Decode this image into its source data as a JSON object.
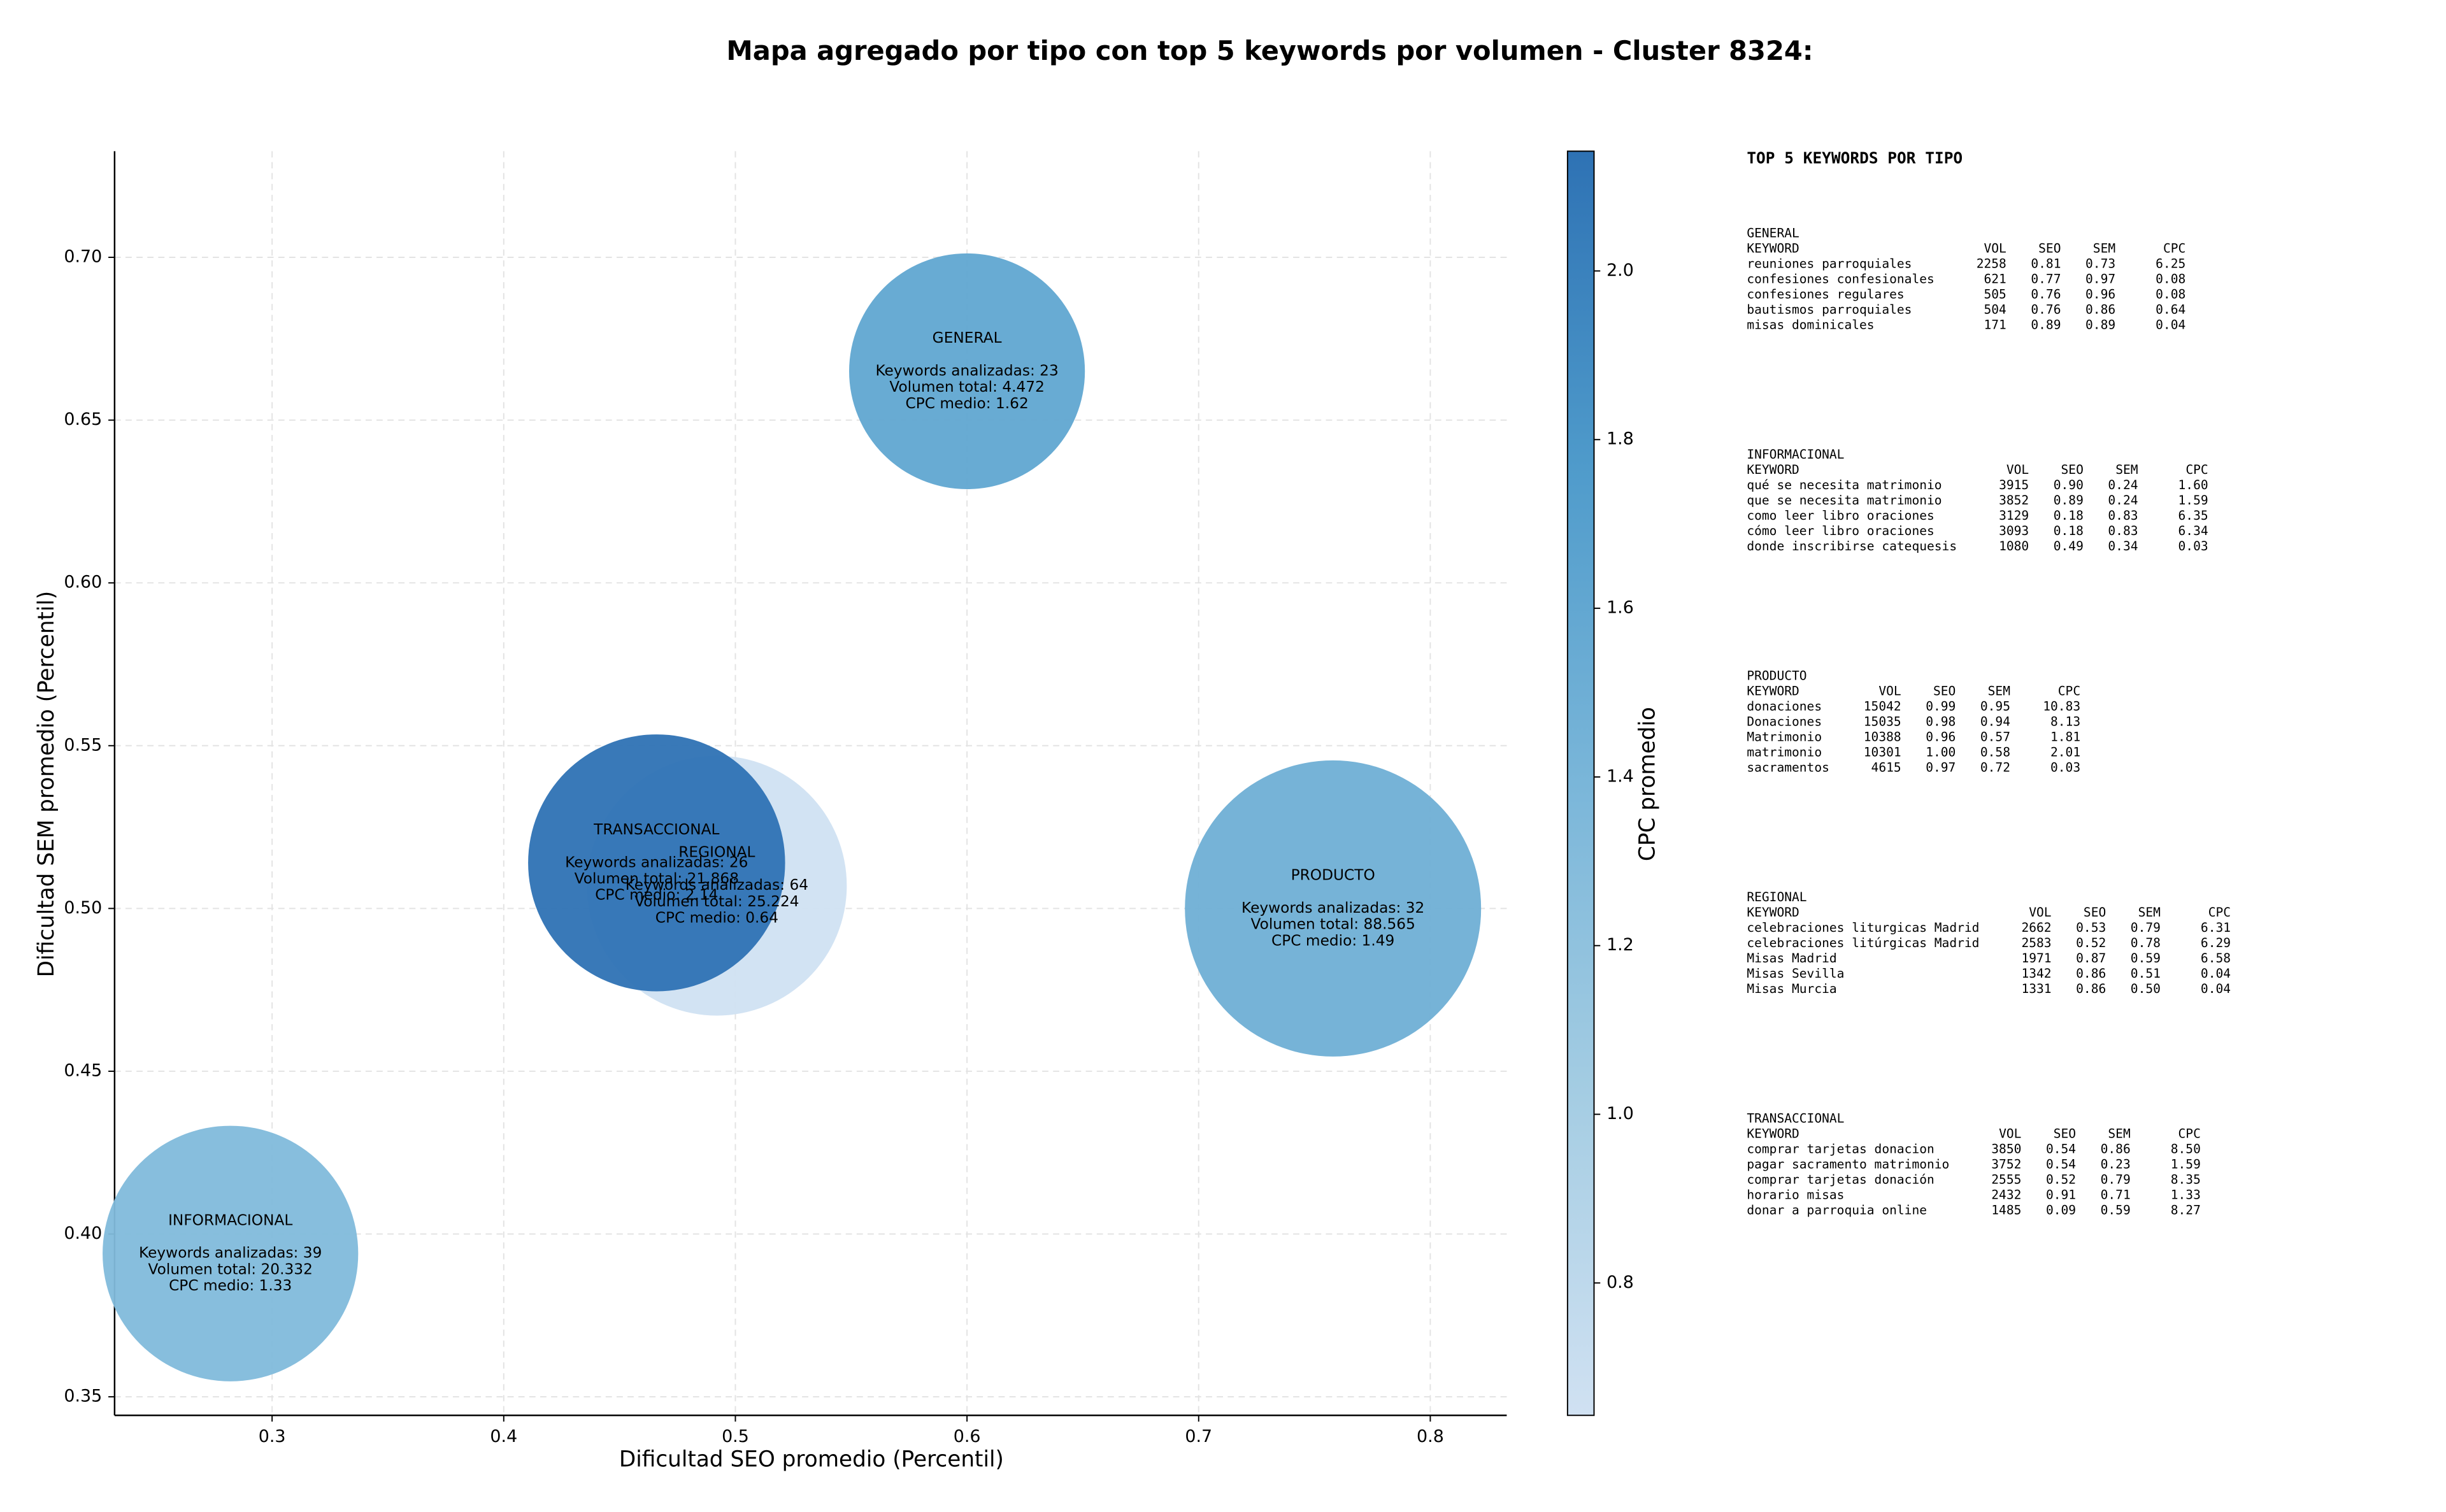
{
  "chart_data": {
    "type": "bubble",
    "title": "Mapa agregado por tipo con top 5 keywords por volumen - Cluster 8324:",
    "x_label": "Dificultad SEO promedio (Percentil)",
    "y_label": "Dificultad SEM promedio (Percentil)",
    "xlim": [
      0.232,
      0.833
    ],
    "ylim": [
      0.3443,
      0.7326
    ],
    "xticks": [
      0.3,
      0.4,
      0.5,
      0.6,
      0.7,
      0.8
    ],
    "yticks": [
      0.35,
      {
        "value": 0.4,
        "label": "0.40"
      },
      0.45,
      {
        "value": 0.5,
        "label": "0.50"
      },
      0.55,
      {
        "value": 0.6,
        "label": "0.60"
      },
      0.65,
      {
        "value": 0.7,
        "label": "0.70"
      }
    ],
    "grid": true,
    "colorbar": {
      "label": "CPC promedio",
      "lim": [
        0.643,
        2.142
      ],
      "ticks": [
        0.8,
        {
          "value": 1.0,
          "label": "1.0"
        },
        1.2,
        1.4,
        1.6,
        1.8,
        {
          "value": 2.0,
          "label": "2.0"
        }
      ],
      "colors": [
        "#d0e1f2",
        "#a5cde3",
        "#7ab6d9",
        "#4f9bcb",
        "#2e72b4"
      ]
    },
    "points": [
      {
        "name": "GENERAL",
        "x": 0.6,
        "y": 0.665,
        "cpc": 1.62,
        "volume": 4472,
        "annotations": [
          "Keywords analizadas: 23",
          "Volumen total: 4.472",
          "CPC medio: 1.62"
        ]
      },
      {
        "name": "INFORMACIONAL",
        "x": 0.282,
        "y": 0.394,
        "cpc": 1.33,
        "volume": 20332,
        "annotations": [
          "Keywords analizadas: 39",
          "Volumen total: 20.332",
          "CPC medio: 1.33"
        ]
      },
      {
        "name": "PRODUCTO",
        "x": 0.758,
        "y": 0.5,
        "cpc": 1.49,
        "volume": 88565,
        "annotations": [
          "Keywords analizadas: 32",
          "Volumen total: 88.565",
          "CPC medio: 1.49"
        ]
      },
      {
        "name": "REGIONAL",
        "x": 0.492,
        "y": 0.507,
        "cpc": 0.64,
        "volume": 25224,
        "annotations": [
          "Keywords analizadas: 64",
          "Volumen total: 25.224",
          "CPC medio: 0.64"
        ]
      },
      {
        "name": "TRANSACCIONAL",
        "x": 0.466,
        "y": 0.514,
        "cpc": 2.14,
        "volume": 21868,
        "annotations": [
          "Keywords analizadas: 26",
          "Volumen total: 21.868",
          "CPC medio: 2.14"
        ]
      }
    ]
  },
  "keyword_table": {
    "title": "TOP 5 KEYWORDS POR TIPO",
    "columns": [
      "KEYWORD",
      "VOL",
      "SEO",
      "SEM",
      "CPC"
    ],
    "sections": [
      {
        "title": "GENERAL",
        "rows": [
          [
            "reuniones parroquiales",
            "2258",
            "0.81",
            "0.73",
            "6.25"
          ],
          [
            "confesiones confesionales",
            "621",
            "0.77",
            "0.97",
            "0.08"
          ],
          [
            "confesiones regulares",
            "505",
            "0.76",
            "0.96",
            "0.08"
          ],
          [
            "bautismos parroquiales",
            "504",
            "0.76",
            "0.86",
            "0.64"
          ],
          [
            "misas dominicales",
            "171",
            "0.89",
            "0.89",
            "0.04"
          ]
        ]
      },
      {
        "title": "INFORMACIONAL",
        "rows": [
          [
            "qué se necesita matrimonio",
            "3915",
            "0.90",
            "0.24",
            "1.60"
          ],
          [
            "que se necesita matrimonio",
            "3852",
            "0.89",
            "0.24",
            "1.59"
          ],
          [
            "como leer libro oraciones",
            "3129",
            "0.18",
            "0.83",
            "6.35"
          ],
          [
            "cómo leer libro oraciones",
            "3093",
            "0.18",
            "0.83",
            "6.34"
          ],
          [
            "donde inscribirse catequesis",
            "1080",
            "0.49",
            "0.34",
            "0.03"
          ]
        ]
      },
      {
        "title": "PRODUCTO",
        "rows": [
          [
            "donaciones",
            "15042",
            "0.99",
            "0.95",
            "10.83"
          ],
          [
            "Donaciones",
            "15035",
            "0.98",
            "0.94",
            "8.13"
          ],
          [
            "Matrimonio",
            "10388",
            "0.96",
            "0.57",
            "1.81"
          ],
          [
            "matrimonio",
            "10301",
            "1.00",
            "0.58",
            "2.01"
          ],
          [
            "sacramentos",
            "4615",
            "0.97",
            "0.72",
            "0.03"
          ]
        ]
      },
      {
        "title": "REGIONAL",
        "rows": [
          [
            "celebraciones liturgicas Madrid",
            "2662",
            "0.53",
            "0.79",
            "6.31"
          ],
          [
            "celebraciones litúrgicas Madrid",
            "2583",
            "0.52",
            "0.78",
            "6.29"
          ],
          [
            "Misas Madrid",
            "1971",
            "0.87",
            "0.59",
            "6.58"
          ],
          [
            "Misas Sevilla",
            "1342",
            "0.86",
            "0.51",
            "0.04"
          ],
          [
            "Misas Murcia",
            "1331",
            "0.86",
            "0.50",
            "0.04"
          ]
        ]
      },
      {
        "title": "TRANSACCIONAL",
        "rows": [
          [
            "comprar tarjetas donacion",
            "3850",
            "0.54",
            "0.86",
            "8.50"
          ],
          [
            "pagar sacramento matrimonio",
            "3752",
            "0.54",
            "0.23",
            "1.59"
          ],
          [
            "comprar tarjetas donación",
            "2555",
            "0.52",
            "0.79",
            "8.35"
          ],
          [
            "horario misas",
            "2432",
            "0.91",
            "0.71",
            "1.33"
          ],
          [
            "donar a parroquia online",
            "1485",
            "0.09",
            "0.59",
            "8.27"
          ]
        ]
      }
    ]
  }
}
